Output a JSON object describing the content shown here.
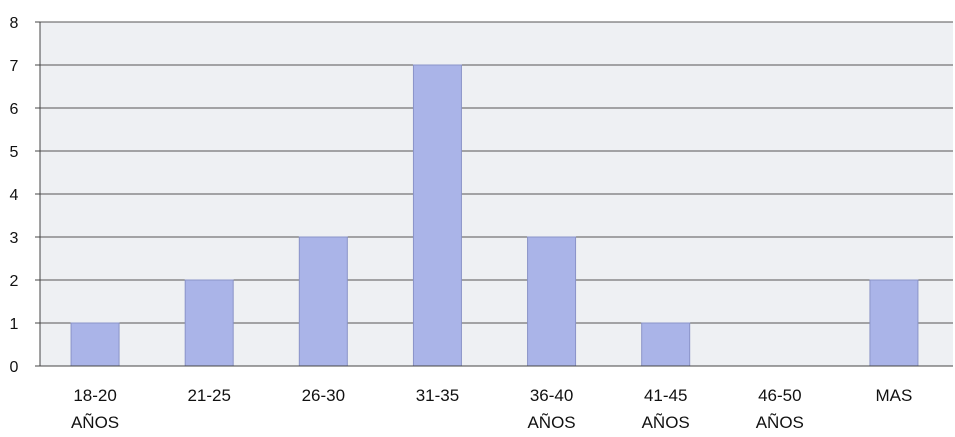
{
  "chart_data": {
    "type": "bar",
    "categories": [
      [
        "18-20",
        "AÑOS"
      ],
      [
        "21-25"
      ],
      [
        "26-30"
      ],
      [
        "31-35"
      ],
      [
        "36-40",
        "AÑOS"
      ],
      [
        "41-45",
        "AÑOS"
      ],
      [
        "46-50",
        "AÑOS"
      ],
      [
        "MAS"
      ]
    ],
    "values": [
      1,
      2,
      3,
      7,
      3,
      1,
      0,
      2
    ],
    "ylim": [
      0,
      8
    ],
    "yticks": [
      "0",
      "1",
      "2",
      "3",
      "4",
      "5",
      "6",
      "7",
      "8"
    ],
    "grid": true,
    "title": "",
    "xlabel": "",
    "ylabel": ""
  },
  "colors": {
    "plot_background": "#eef0f3",
    "bar_fill": "#aab4e8",
    "bar_stroke": "#8a93c8",
    "gridline": "#555555",
    "axis": "#444444"
  }
}
